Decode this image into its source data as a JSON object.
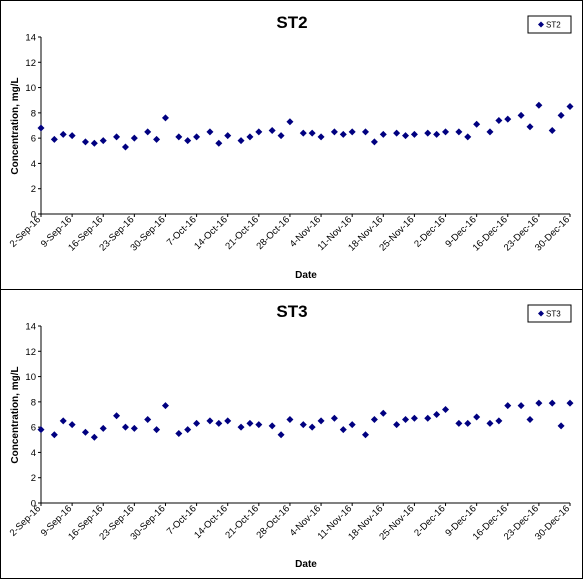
{
  "chart_data": [
    {
      "type": "scatter",
      "title": "ST2",
      "xlabel": "Date",
      "ylabel": "Concentration, mg/L",
      "ylim": [
        0,
        14
      ],
      "yticks": [
        "0",
        "2",
        "4",
        "6",
        "8",
        "10",
        "12",
        "14"
      ],
      "xlim": [
        "2016-09-02",
        "2016-12-30"
      ],
      "xticks": [
        "2-Sep-16",
        "9-Sep-16",
        "16-Sep-16",
        "23-Sep-16",
        "30-Sep-16",
        "7-Oct-16",
        "14-Oct-16",
        "21-Oct-16",
        "28-Oct-16",
        "4-Nov-16",
        "11-Nov-16",
        "18-Nov-16",
        "25-Nov-16",
        "2-Dec-16",
        "9-Dec-16",
        "16-Dec-16",
        "23-Dec-16",
        "30-Dec-16"
      ],
      "grid": false,
      "legend_position": "top-right",
      "series": [
        {
          "name": "ST2",
          "color": "#000080",
          "marker": "diamond",
          "x": [
            "2016-09-02",
            "2016-09-05",
            "2016-09-07",
            "2016-09-09",
            "2016-09-12",
            "2016-09-14",
            "2016-09-16",
            "2016-09-19",
            "2016-09-21",
            "2016-09-23",
            "2016-09-26",
            "2016-09-28",
            "2016-09-30",
            "2016-10-03",
            "2016-10-05",
            "2016-10-07",
            "2016-10-10",
            "2016-10-12",
            "2016-10-14",
            "2016-10-17",
            "2016-10-19",
            "2016-10-21",
            "2016-10-24",
            "2016-10-26",
            "2016-10-28",
            "2016-10-31",
            "2016-11-02",
            "2016-11-04",
            "2016-11-07",
            "2016-11-09",
            "2016-11-11",
            "2016-11-14",
            "2016-11-16",
            "2016-11-18",
            "2016-11-21",
            "2016-11-23",
            "2016-11-25",
            "2016-11-28",
            "2016-11-30",
            "2016-12-02",
            "2016-12-05",
            "2016-12-07",
            "2016-12-09",
            "2016-12-12",
            "2016-12-14",
            "2016-12-16",
            "2016-12-19",
            "2016-12-21",
            "2016-12-23",
            "2016-12-26",
            "2016-12-28",
            "2016-12-30"
          ],
          "y": [
            6.8,
            5.9,
            6.3,
            6.2,
            5.7,
            5.6,
            5.8,
            6.1,
            5.3,
            6.0,
            6.5,
            5.9,
            7.6,
            6.1,
            5.8,
            6.1,
            6.5,
            5.6,
            6.2,
            5.8,
            6.1,
            6.5,
            6.6,
            6.2,
            7.3,
            6.4,
            6.4,
            6.1,
            6.5,
            6.3,
            6.5,
            6.5,
            5.7,
            6.3,
            6.4,
            6.2,
            6.3,
            6.4,
            6.3,
            6.5,
            6.5,
            6.1,
            7.1,
            6.5,
            7.4,
            7.5,
            7.8,
            6.9,
            8.6,
            6.6,
            7.8,
            8.5
          ]
        }
      ]
    },
    {
      "type": "scatter",
      "title": "ST3",
      "xlabel": "Date",
      "ylabel": "Concentration, mg/L",
      "ylim": [
        0,
        14
      ],
      "yticks": [
        "0",
        "2",
        "4",
        "6",
        "8",
        "10",
        "12",
        "14"
      ],
      "xlim": [
        "2016-09-02",
        "2016-12-30"
      ],
      "xticks": [
        "2-Sep-16",
        "9-Sep-16",
        "16-Sep-16",
        "23-Sep-16",
        "30-Sep-16",
        "7-Oct-16",
        "14-Oct-16",
        "21-Oct-16",
        "28-Oct-16",
        "4-Nov-16",
        "11-Nov-16",
        "18-Nov-16",
        "25-Nov-16",
        "2-Dec-16",
        "9-Dec-16",
        "16-Dec-16",
        "23-Dec-16",
        "30-Dec-16"
      ],
      "grid": false,
      "legend_position": "top-right",
      "series": [
        {
          "name": "ST3",
          "color": "#000080",
          "marker": "diamond",
          "x": [
            "2016-09-02",
            "2016-09-05",
            "2016-09-07",
            "2016-09-09",
            "2016-09-12",
            "2016-09-14",
            "2016-09-16",
            "2016-09-19",
            "2016-09-21",
            "2016-09-23",
            "2016-09-26",
            "2016-09-28",
            "2016-09-30",
            "2016-10-03",
            "2016-10-05",
            "2016-10-07",
            "2016-10-10",
            "2016-10-12",
            "2016-10-14",
            "2016-10-17",
            "2016-10-19",
            "2016-10-21",
            "2016-10-24",
            "2016-10-26",
            "2016-10-28",
            "2016-10-31",
            "2016-11-02",
            "2016-11-04",
            "2016-11-07",
            "2016-11-09",
            "2016-11-11",
            "2016-11-14",
            "2016-11-16",
            "2016-11-18",
            "2016-11-21",
            "2016-11-23",
            "2016-11-25",
            "2016-11-28",
            "2016-11-30",
            "2016-12-02",
            "2016-12-05",
            "2016-12-07",
            "2016-12-09",
            "2016-12-12",
            "2016-12-14",
            "2016-12-16",
            "2016-12-19",
            "2016-12-21",
            "2016-12-23",
            "2016-12-26",
            "2016-12-28",
            "2016-12-30"
          ],
          "y": [
            5.8,
            5.4,
            6.5,
            6.2,
            5.6,
            5.2,
            5.9,
            6.9,
            6.0,
            5.9,
            6.6,
            5.8,
            7.7,
            5.5,
            5.8,
            6.3,
            6.5,
            6.3,
            6.5,
            6.0,
            6.3,
            6.2,
            6.1,
            5.4,
            6.6,
            6.2,
            6.0,
            6.5,
            6.7,
            5.8,
            6.2,
            5.4,
            6.6,
            7.1,
            6.2,
            6.6,
            6.7,
            6.7,
            7.0,
            7.4,
            6.3,
            6.3,
            6.8,
            6.3,
            6.5,
            7.7,
            7.7,
            6.6,
            7.9,
            7.9,
            6.1,
            7.9
          ]
        }
      ]
    }
  ]
}
